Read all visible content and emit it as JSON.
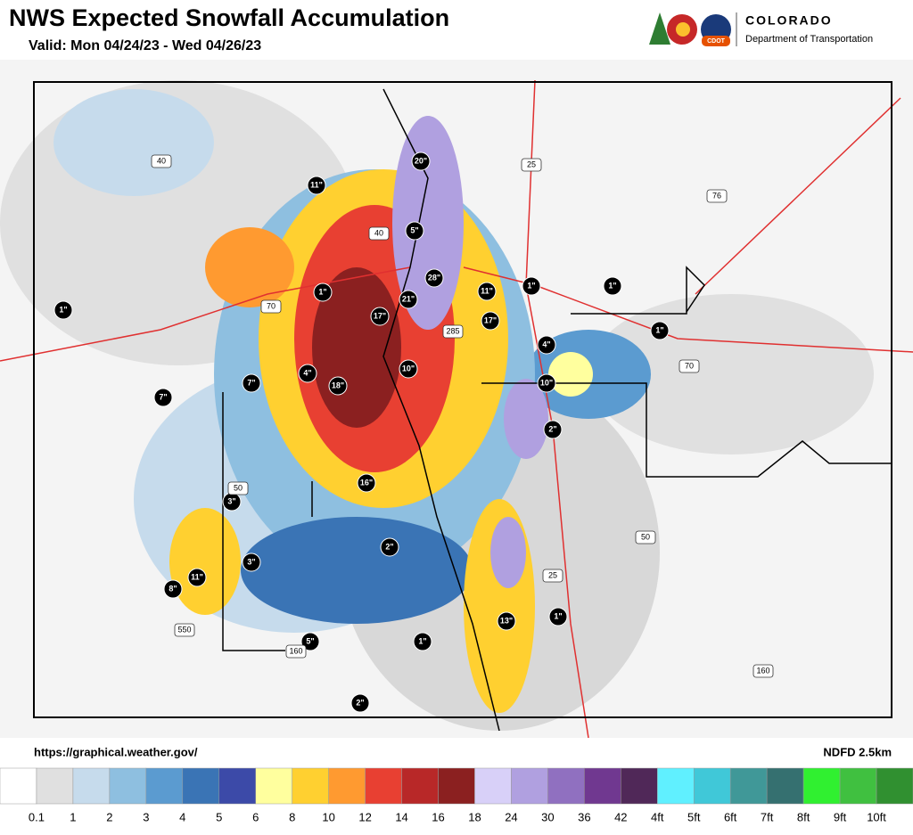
{
  "header": {
    "title": "NWS Expected Snowfall Accumulation",
    "valid": "Valid: Mon 04/24/23 - Wed 04/26/23"
  },
  "logo": {
    "badge": "CDOT",
    "name": "COLORADO",
    "subtitle": "Department of Transportation"
  },
  "map": {
    "snow_labels": [
      "20\"",
      "11\"",
      "5\"",
      "28\"",
      "1\"",
      "21\"",
      "11\"",
      "1\"",
      "1\"",
      "1\"",
      "17\"",
      "17\"",
      "1\"",
      "4\"",
      "4\"",
      "10\"",
      "7\"",
      "18\"",
      "10\"",
      "7\"",
      "2\"",
      "16\"",
      "3\"",
      "2\"",
      "3\"",
      "11\"",
      "8\"",
      "13\"",
      "1\"",
      "5\"",
      "1\"",
      "2\""
    ],
    "highway_labels": [
      "40",
      "25",
      "76",
      "40",
      "70",
      "285",
      "70",
      "50",
      "50",
      "25",
      "550",
      "160",
      "160"
    ]
  },
  "footer": {
    "source": "https://graphical.weather.gov/",
    "model": "NDFD 2.5km"
  },
  "legend": {
    "colors": [
      "#ffffff",
      "#e0e0e0",
      "#c6dbec",
      "#8ebfe0",
      "#5b9bd0",
      "#3a74b5",
      "#3c4aa8",
      "#ffff9e",
      "#ffd030",
      "#ff9a30",
      "#e84032",
      "#b82828",
      "#8b2020",
      "#d8d0f8",
      "#b0a0e0",
      "#9070c0",
      "#703890",
      "#502858",
      "#60f0ff",
      "#40c8d8",
      "#409898",
      "#357070",
      "#30f030",
      "#40c040",
      "#309030"
    ],
    "labels": [
      "0.1",
      "1",
      "2",
      "3",
      "4",
      "5",
      "6",
      "8",
      "10",
      "12",
      "14",
      "16",
      "18",
      "24",
      "30",
      "36",
      "42",
      "4ft",
      "5ft",
      "6ft",
      "7ft",
      "8ft",
      "9ft",
      "10ft"
    ]
  }
}
